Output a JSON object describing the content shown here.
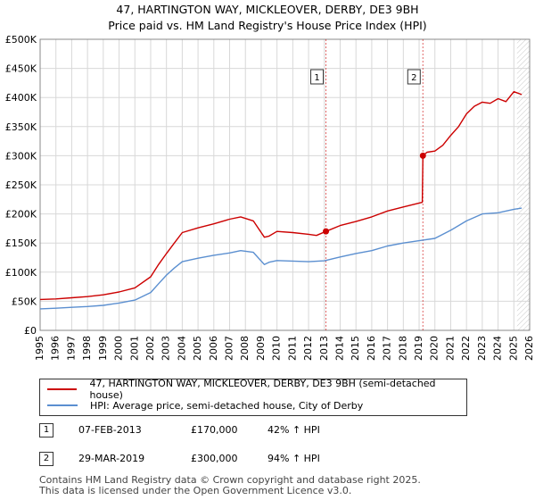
{
  "title": {
    "line1": "47, HARTINGTON WAY, MICKLEOVER, DERBY, DE3 9BH",
    "line2": "Price paid vs. HM Land Registry's House Price Index (HPI)"
  },
  "legend": {
    "property_label": "47, HARTINGTON WAY, MICKLEOVER, DERBY, DE3 9BH (semi-detached house)",
    "hpi_label": "HPI: Average price, semi-detached house, City of Derby"
  },
  "sales": [
    {
      "num": "1",
      "date": "07-FEB-2013",
      "price": "£170,000",
      "hpi_delta": "42% ↑ HPI"
    },
    {
      "num": "2",
      "date": "29-MAR-2019",
      "price": "£300,000",
      "hpi_delta": "94% ↑ HPI"
    }
  ],
  "footer": {
    "line1": "Contains HM Land Registry data © Crown copyright and database right 2025.",
    "line2": "This data is licensed under the Open Government Licence v3.0."
  },
  "colors": {
    "property": "#cc0000",
    "hpi": "#5b8fd0",
    "grid": "#d8d8d8",
    "marker_line": "#cc0000"
  },
  "chart_data": {
    "type": "line",
    "xlim": [
      1995,
      2026
    ],
    "ylim": [
      0,
      500000
    ],
    "x_ticks": [
      "1995",
      "1996",
      "1997",
      "1998",
      "1999",
      "2000",
      "2001",
      "2002",
      "2003",
      "2004",
      "2005",
      "2006",
      "2007",
      "2008",
      "2009",
      "2010",
      "2011",
      "2012",
      "2013",
      "2014",
      "2015",
      "2016",
      "2017",
      "2018",
      "2019",
      "2020",
      "2021",
      "2022",
      "2023",
      "2024",
      "2025",
      "2026"
    ],
    "y_ticks": [
      {
        "value": 0,
        "label": "£0"
      },
      {
        "value": 50000,
        "label": "£50K"
      },
      {
        "value": 100000,
        "label": "£100K"
      },
      {
        "value": 150000,
        "label": "£150K"
      },
      {
        "value": 200000,
        "label": "£200K"
      },
      {
        "value": 250000,
        "label": "£250K"
      },
      {
        "value": 300000,
        "label": "£300K"
      },
      {
        "value": 350000,
        "label": "£350K"
      },
      {
        "value": 400000,
        "label": "£400K"
      },
      {
        "value": 450000,
        "label": "£450K"
      },
      {
        "value": 500000,
        "label": "£500K"
      }
    ],
    "grid": true,
    "future_hatch_start": 2025.2,
    "series": [
      {
        "name": "47, HARTINGTON WAY, MICKLEOVER, DERBY, DE3 9BH (semi-detached house)",
        "x": [
          1995,
          1996,
          1997,
          1998,
          1999,
          2000,
          2001,
          2002,
          2002.5,
          2003,
          2003.5,
          2004,
          2005,
          2006,
          2007,
          2007.7,
          2008.5,
          2009.2,
          2009.5,
          2010,
          2011,
          2012,
          2012.5,
          2013.1,
          2014,
          2015,
          2016,
          2017,
          2018,
          2019.2,
          2019.24,
          2019.5,
          2020,
          2020.5,
          2021,
          2021.5,
          2022,
          2022.5,
          2023,
          2023.5,
          2024,
          2024.5,
          2025,
          2025.5
        ],
        "y": [
          53000,
          54000,
          56000,
          58000,
          61000,
          66000,
          73000,
          92000,
          113000,
          132000,
          150000,
          168000,
          176000,
          183000,
          191000,
          195000,
          188000,
          160000,
          162000,
          170000,
          168000,
          165000,
          163000,
          170000,
          180000,
          187000,
          195000,
          205000,
          212000,
          220000,
          300000,
          306000,
          308000,
          318000,
          335000,
          350000,
          372000,
          385000,
          392000,
          390000,
          398000,
          393000,
          410000,
          405000
        ]
      },
      {
        "name": "HPI: Average price, semi-detached house, City of Derby",
        "x": [
          1995,
          1996,
          1997,
          1998,
          1999,
          2000,
          2001,
          2002,
          2002.5,
          2003,
          2003.5,
          2004,
          2005,
          2006,
          2007,
          2007.7,
          2008.5,
          2009.2,
          2009.5,
          2010,
          2011,
          2012,
          2013,
          2014,
          2015,
          2016,
          2017,
          2018,
          2019,
          2020,
          2021,
          2022,
          2023,
          2024,
          2025,
          2025.5
        ],
        "y": [
          37000,
          38000,
          39500,
          41000,
          43000,
          47000,
          52000,
          65000,
          80000,
          95000,
          107000,
          118000,
          124000,
          129000,
          133000,
          137000,
          134000,
          113000,
          117000,
          120000,
          119000,
          118000,
          119500,
          126000,
          132000,
          137000,
          145000,
          150000,
          154000,
          158000,
          172000,
          188000,
          200000,
          202000,
          208000,
          210000
        ]
      }
    ],
    "annotations": [
      {
        "label": "1",
        "x": 2013.1,
        "y": 170000
      },
      {
        "label": "2",
        "x": 2019.24,
        "y": 300000
      }
    ]
  }
}
